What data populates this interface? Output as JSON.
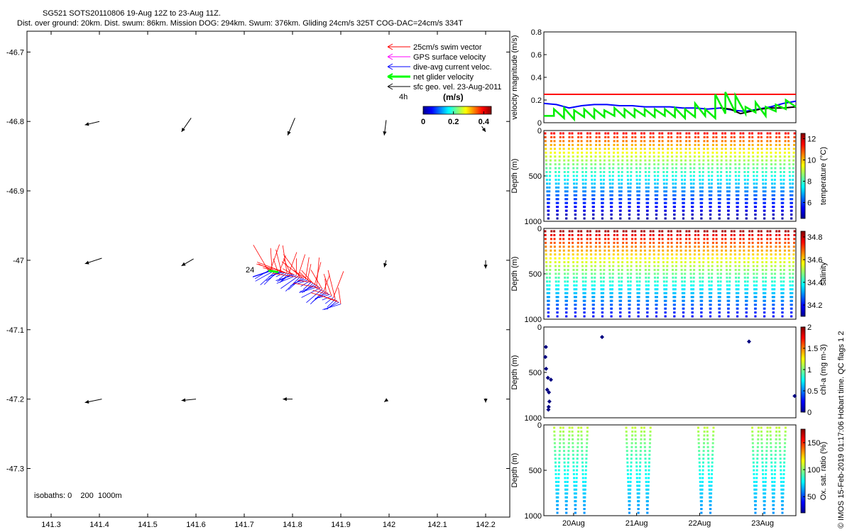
{
  "header": {
    "line1": "SG521 SOTS20110806 19-Aug 12Z to 23-Aug 11Z.",
    "line2": "Dist. over ground: 20km. Dist. swum: 86km. Mission DOG: 294km. Swum: 376km. Gliding 24cm/s 325T COG-DAC=24cm/s 334T"
  },
  "footer": {
    "credit": "© IMOS 15-Feb-2019 01:17:06 Hobart time. QC flags 1  2"
  },
  "colors": {
    "swim_vector": "#ff0000",
    "gps_surface": "#ff00ff",
    "dive_avg_current": "#0000ff",
    "net_glider": "#00ff00",
    "sfc_geo": "#000000",
    "speed_red_line": "#ff0000",
    "speed_green_line": "#00ee00"
  },
  "chart_data": [
    {
      "type": "map",
      "xlim": [
        141.25,
        142.25
      ],
      "ylim": [
        -47.37,
        -46.67
      ],
      "xticks": [
        141.3,
        141.4,
        141.5,
        141.6,
        141.7,
        141.8,
        141.9,
        142,
        142.1,
        142.2
      ],
      "xtick_labels": [
        "141.3",
        "141.4",
        "141.5",
        "141.6",
        "141.7",
        "141.8",
        "141.9",
        "142",
        "142.1",
        "142.2"
      ],
      "yticks": [
        -46.7,
        -46.8,
        -46.9,
        -47,
        -47.1,
        -47.2,
        -47.3
      ],
      "ytick_labels": [
        "-46.7",
        "-46.8",
        "-46.9",
        "-47",
        "-47.1",
        "-47.2",
        "-47.3"
      ],
      "legend": {
        "placement": "top-right",
        "entries": [
          {
            "label": "25cm/s swim vector",
            "color": "#ff0000"
          },
          {
            "label": "GPS surface velocity",
            "color": "#ff00ff"
          },
          {
            "label": "dive-avg current veloc.",
            "color": "#0000ff"
          },
          {
            "label": "net glider velocity",
            "color": "#00ff00"
          },
          {
            "label": "sfc geo. vel. 23-Aug-2011",
            "color": "#000000"
          }
        ]
      },
      "colorbar": {
        "title": "(m/s)",
        "tick_labels": [
          "0",
          "0.2",
          "0.4"
        ],
        "range": [
          0,
          0.45
        ]
      },
      "annotations": {
        "start_label": "24",
        "time_label": "4h",
        "isobaths": "isobaths: 0    200  1000m"
      },
      "geo_vectors": [
        {
          "lon": 141.37,
          "lat": -46.805,
          "dlon": 0.03,
          "dlat": 0.005
        },
        {
          "lon": 141.57,
          "lat": -46.815,
          "dlon": 0.02,
          "dlat": 0.02
        },
        {
          "lon": 141.79,
          "lat": -46.82,
          "dlon": 0.015,
          "dlat": 0.025
        },
        {
          "lon": 141.99,
          "lat": -46.82,
          "dlon": 0.004,
          "dlat": 0.022
        },
        {
          "lon": 142.2,
          "lat": -46.815,
          "dlon": -0.008,
          "dlat": 0.008
        },
        {
          "lon": 141.37,
          "lat": -47.005,
          "dlon": 0.035,
          "dlat": 0.008
        },
        {
          "lon": 141.57,
          "lat": -47.008,
          "dlon": 0.025,
          "dlat": 0.01
        },
        {
          "lon": 141.99,
          "lat": -47.01,
          "dlon": 0.004,
          "dlat": 0.01
        },
        {
          "lon": 142.2,
          "lat": -47.012,
          "dlon": 0,
          "dlat": 0.012
        },
        {
          "lon": 141.37,
          "lat": -47.205,
          "dlon": 0.035,
          "dlat": 0.005
        },
        {
          "lon": 141.57,
          "lat": -47.202,
          "dlon": 0.03,
          "dlat": 0.002
        },
        {
          "lon": 141.78,
          "lat": -47.2,
          "dlon": 0.02,
          "dlat": 0
        },
        {
          "lon": 141.99,
          "lat": -47.204,
          "dlon": 0.004,
          "dlat": 0.002
        },
        {
          "lon": 142.2,
          "lat": -47.205,
          "dlon": 0,
          "dlat": 0.006
        }
      ],
      "track": {
        "start": [
          141.75,
          -47.015
        ],
        "end": [
          141.9,
          -47.063
        ],
        "vector_count": 40
      }
    },
    {
      "type": "line",
      "ylabel": "velocity magnitude (m/s)",
      "ylim": [
        0,
        0.8
      ],
      "yticks": [
        0,
        0.2,
        0.4,
        0.6,
        0.8
      ],
      "ytick_labels": [
        "0",
        "0.2",
        "0.4",
        "0.6",
        "0.8"
      ],
      "xlim": [
        0,
        1
      ],
      "series": [
        {
          "color": "#ff0000",
          "x": [
            0,
            1
          ],
          "y": [
            0.25,
            0.25
          ]
        },
        {
          "color": "#0000ff",
          "x": [
            0,
            0.05,
            0.1,
            0.15,
            0.2,
            0.25,
            0.3,
            0.35,
            0.4,
            0.45,
            0.5,
            0.55,
            0.6,
            0.65,
            0.7,
            0.75,
            0.8,
            0.85,
            0.9,
            0.95,
            1
          ],
          "y": [
            0.17,
            0.16,
            0.13,
            0.15,
            0.16,
            0.16,
            0.15,
            0.15,
            0.14,
            0.14,
            0.14,
            0.13,
            0.13,
            0.12,
            0.13,
            0.11,
            0.1,
            0.12,
            0.14,
            0.17,
            0.19
          ]
        },
        {
          "color": "#000000",
          "x": [
            0.7,
            0.74,
            0.78,
            0.82,
            0.86,
            0.9,
            0.95,
            1
          ],
          "y": [
            0.13,
            0.12,
            0.08,
            0.1,
            0.12,
            0.13,
            0.13,
            0.14
          ]
        },
        {
          "color": "#00ee00",
          "x": [
            0,
            0.04,
            0.04,
            0.08,
            0.08,
            0.12,
            0.12,
            0.16,
            0.16,
            0.2,
            0.2,
            0.24,
            0.24,
            0.28,
            0.28,
            0.32,
            0.32,
            0.36,
            0.36,
            0.4,
            0.4,
            0.44,
            0.44,
            0.48,
            0.48,
            0.52,
            0.52,
            0.56,
            0.56,
            0.6,
            0.6,
            0.64,
            0.64,
            0.68,
            0.68,
            0.72,
            0.72,
            0.76,
            0.76,
            0.8,
            0.8,
            0.84,
            0.84,
            0.88,
            0.88,
            0.92,
            0.92,
            0.96,
            0.96,
            1
          ],
          "y": [
            0.06,
            0.06,
            0.12,
            0.04,
            0.13,
            0.03,
            0.11,
            0.05,
            0.12,
            0.04,
            0.12,
            0.05,
            0.11,
            0.06,
            0.13,
            0.05,
            0.12,
            0.05,
            0.12,
            0.06,
            0.12,
            0.05,
            0.12,
            0.06,
            0.12,
            0.05,
            0.13,
            0.04,
            0.12,
            0.05,
            0.17,
            0.06,
            0.12,
            0.04,
            0.25,
            0.08,
            0.27,
            0.09,
            0.24,
            0.08,
            0.14,
            0.09,
            0.18,
            0.06,
            0.14,
            0.1,
            0.16,
            0.12,
            0.2,
            0.14
          ]
        }
      ]
    },
    {
      "type": "scatter",
      "ylabel": "Depth (m)",
      "ylim": [
        1000,
        0
      ],
      "yticks": [
        0,
        500,
        1000
      ],
      "ytick_labels": [
        "0",
        "500",
        "1000"
      ],
      "colorbar": {
        "label": "temperature (°C)",
        "tick_labels": [
          "6",
          "8",
          "10",
          "12"
        ],
        "range": [
          4.5,
          12.5
        ]
      },
      "profiles": {
        "count": 28,
        "max_depth": [
          1000,
          1000
        ],
        "surface_value": 11.5,
        "bottom_value": 4.8,
        "profile_width": 0.7
      }
    },
    {
      "type": "scatter",
      "ylabel": "Depth (m)",
      "ylim": [
        1000,
        0
      ],
      "yticks": [
        0,
        500,
        1000
      ],
      "ytick_labels": [
        "0",
        "500",
        "1000"
      ],
      "colorbar": {
        "label": "salinity",
        "tick_labels": [
          "34.2",
          "34.4",
          "34.6",
          "34.8"
        ],
        "range": [
          34.1,
          34.85
        ]
      },
      "profiles": {
        "count": 28,
        "max_depth": [
          1000,
          1000
        ],
        "surface_value": 34.82,
        "bottom_value": 34.2,
        "profile_width": 0.7
      }
    },
    {
      "type": "scatter",
      "ylabel": "Depth (m)",
      "ylim": [
        1000,
        0
      ],
      "yticks": [
        0,
        500,
        1000
      ],
      "ytick_labels": [
        "0",
        "500",
        "1000"
      ],
      "colorbar": {
        "label": "chl-a (mg m-3)",
        "tick_labels": [
          "0",
          "0.5",
          "1",
          "1.5",
          "2"
        ],
        "range": [
          0,
          2
        ]
      },
      "points": [
        {
          "x": 0.008,
          "y": 220,
          "v": 0
        },
        {
          "x": 0.006,
          "y": 330,
          "v": 0
        },
        {
          "x": 0.009,
          "y": 460,
          "v": 0
        },
        {
          "x": 0.016,
          "y": 560,
          "v": 0
        },
        {
          "x": 0.013,
          "y": 690,
          "v": 0
        },
        {
          "x": 0.02,
          "y": 720,
          "v": 0
        },
        {
          "x": 0.028,
          "y": 580,
          "v": 0
        },
        {
          "x": 0.022,
          "y": 820,
          "v": 0
        },
        {
          "x": 0.019,
          "y": 880,
          "v": 0
        },
        {
          "x": 0.018,
          "y": 910,
          "v": 0
        },
        {
          "x": 0.231,
          "y": 110,
          "v": 0
        },
        {
          "x": 0.814,
          "y": 160,
          "v": 0
        },
        {
          "x": 0.995,
          "y": 760,
          "v": 0
        }
      ]
    },
    {
      "type": "scatter",
      "ylabel": "Depth (m)",
      "ylim": [
        1000,
        0
      ],
      "yticks": [
        0,
        500,
        1000
      ],
      "ytick_labels": [
        "0",
        "500",
        "1000"
      ],
      "xtick_labels": [
        "20Aug",
        "21Aug",
        "22Aug",
        "23Aug"
      ],
      "xticks": [
        0.118,
        0.368,
        0.618,
        0.868
      ],
      "colorbar": {
        "label": "Ox. sat. ratio (%)",
        "tick_labels": [
          "50",
          "100",
          "150"
        ],
        "range": [
          20,
          175
        ]
      },
      "profiles": {
        "count": 28,
        "max_depth": [
          1000,
          1000
        ],
        "surface_value": 108,
        "bottom_value": 62,
        "profile_width": 0.7,
        "segments": [
          [
            0.04,
            0.19
          ],
          [
            0.31,
            0.43
          ],
          [
            0.61,
            0.69
          ],
          [
            0.83,
            0.96
          ]
        ]
      }
    }
  ]
}
